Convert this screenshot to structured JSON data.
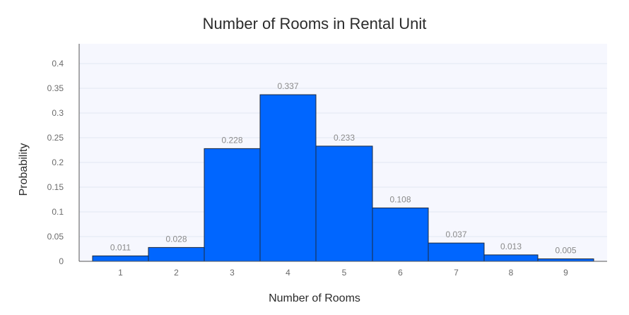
{
  "chart_data": {
    "type": "bar",
    "title": "Number of Rooms in Rental Unit",
    "xlabel": "Number of Rooms",
    "ylabel": "Probability",
    "categories": [
      "1",
      "2",
      "3",
      "4",
      "5",
      "6",
      "7",
      "8",
      "9"
    ],
    "values": [
      0.011,
      0.028,
      0.228,
      0.337,
      0.233,
      0.108,
      0.037,
      0.013,
      0.005
    ],
    "data_labels": [
      "0.011",
      "0.028",
      "0.228",
      "0.337",
      "0.233",
      "0.108",
      "0.037",
      "0.013",
      "0.005"
    ],
    "ylim": [
      0,
      0.4
    ],
    "yticks": [
      "0",
      "0.05",
      "0.1",
      "0.15",
      "0.2",
      "0.25",
      "0.3",
      "0.35",
      "0.4"
    ],
    "grid": true,
    "colors": {
      "bar": "#0066ff",
      "plot_background": "#f6f7fe",
      "grid": "#e3e7f2"
    }
  }
}
